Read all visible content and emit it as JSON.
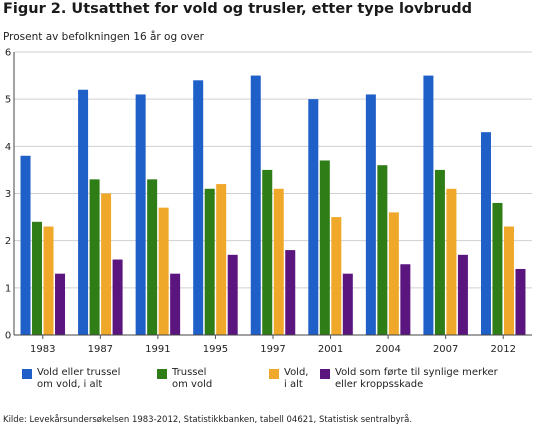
{
  "chart_data": {
    "type": "bar",
    "title": "Figur 2. Utsatthet for vold og trusler, etter type lovbrudd",
    "ylabel": "Prosent av befolkningen 16 år og over",
    "categories": [
      "1983",
      "1987",
      "1991",
      "1995",
      "1997",
      "2001",
      "2004",
      "2007",
      "2012"
    ],
    "ylim": [
      0,
      6
    ],
    "yticks": [
      "0",
      "1",
      "2",
      "3",
      "4",
      "5",
      "6"
    ],
    "grid": true,
    "legend_position": "bottom",
    "series": [
      {
        "name": "Vold eller trussel om vold, i alt",
        "label_lines": [
          "Vold eller trussel",
          "om vold, i alt"
        ],
        "color": "#1f5fc8",
        "values": [
          3.8,
          5.2,
          5.1,
          5.4,
          5.5,
          5.0,
          5.1,
          5.5,
          4.3
        ]
      },
      {
        "name": "Trussel om vold",
        "label_lines": [
          "Trussel",
          "om vold"
        ],
        "color": "#2e7d16",
        "values": [
          2.4,
          3.3,
          3.3,
          3.1,
          3.5,
          3.7,
          3.6,
          3.5,
          2.8
        ]
      },
      {
        "name": "Vold, i alt",
        "label_lines": [
          "Vold,",
          "i alt"
        ],
        "color": "#efa82a",
        "values": [
          2.3,
          3.0,
          2.7,
          3.2,
          3.1,
          2.5,
          2.6,
          3.1,
          2.3
        ]
      },
      {
        "name": "Vold som førte til synlige merker eller kroppsskade",
        "label_lines": [
          "Vold som førte til synlige merker",
          "eller kroppsskade"
        ],
        "color": "#5b157e",
        "values": [
          1.3,
          1.6,
          1.3,
          1.7,
          1.8,
          1.3,
          1.5,
          1.7,
          1.4
        ]
      }
    ]
  },
  "source": "Kilde: Levekårsundersøkelsen 1983-2012, Statistikkbanken, tabell 04621, Statistisk sentralbyrå."
}
